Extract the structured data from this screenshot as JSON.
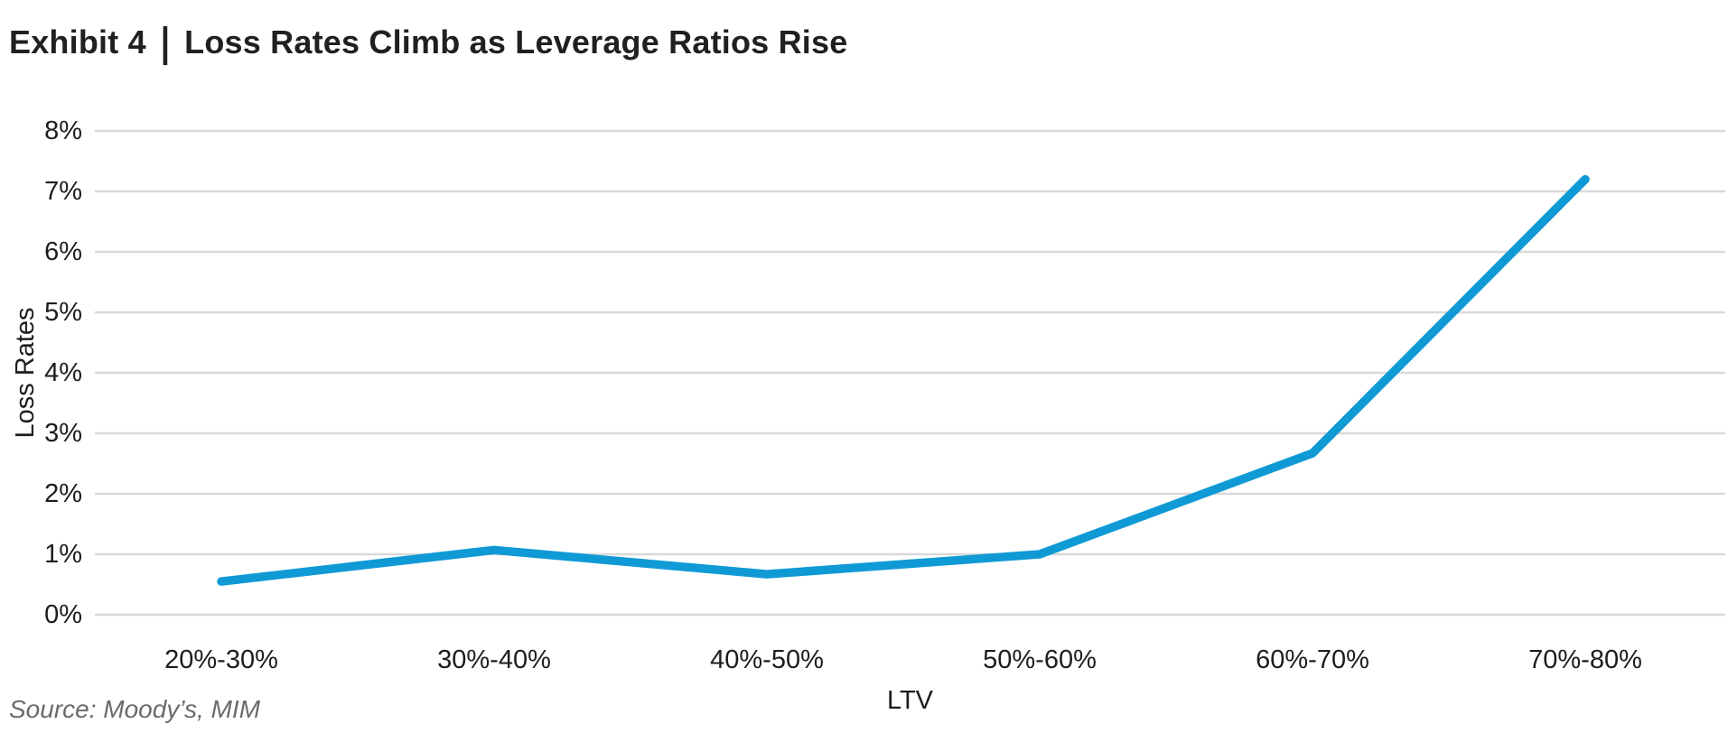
{
  "header": {
    "exhibit": "Exhibit 4",
    "separator": "|",
    "title": "Loss Rates Climb as Leverage Ratios Rise"
  },
  "footer": {
    "source": "Source: Moody’s, MIM"
  },
  "chart_data": {
    "type": "line",
    "title": "Loss Rates Climb as Leverage Ratios Rise",
    "categories": [
      "20%-30%",
      "30%-40%",
      "40%-50%",
      "50%-60%",
      "60%-70%",
      "70%-80%"
    ],
    "series": [
      {
        "name": "Loss Rates",
        "values": [
          0.55,
          1.07,
          0.67,
          1.0,
          2.67,
          7.2
        ]
      }
    ],
    "xlabel": "LTV",
    "ylabel": "Loss Rates",
    "ylim": [
      0,
      8
    ],
    "ytick_labels": [
      "0%",
      "1%",
      "2%",
      "3%",
      "4%",
      "5%",
      "6%",
      "7%",
      "8%"
    ],
    "grid": true,
    "legend": "none",
    "colors": {
      "line": "#0f9ad6",
      "gridline": "#d9d9d9",
      "tick_text": "#1e1c1f",
      "source_text": "#6b6b6f"
    }
  }
}
